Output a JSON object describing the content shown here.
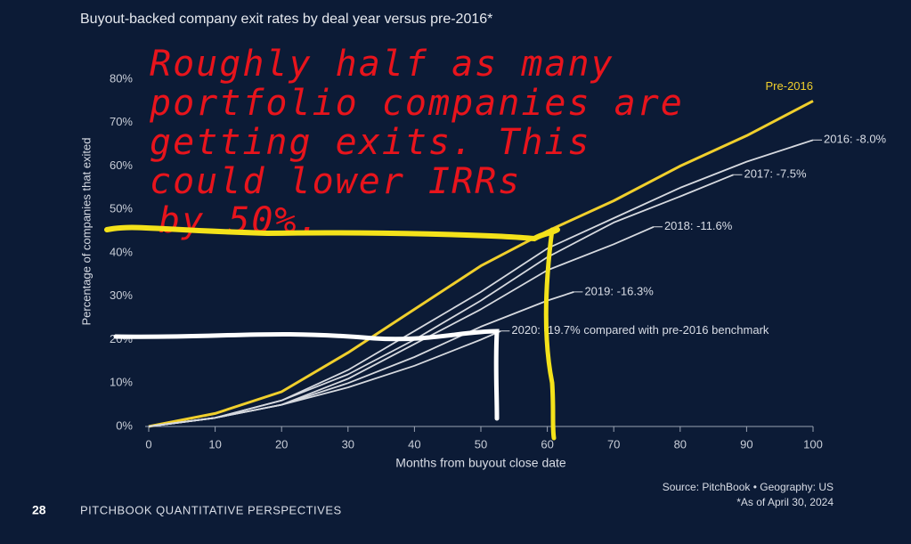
{
  "chart_data": {
    "type": "line",
    "title": "Buyout-backed company exit rates by deal year versus pre-2016*",
    "x_label": "Months from buyout close date",
    "y_label": "Percentage of companies that exited",
    "source": "Source: PitchBook • Geography: US",
    "footnote": "*As of April 30, 2024",
    "xlim": [
      0,
      100
    ],
    "xticks": [
      0,
      10,
      20,
      30,
      40,
      50,
      60,
      70,
      80,
      90,
      100
    ],
    "ylim": [
      0,
      80
    ],
    "yticks": [
      {
        "value": 0,
        "label": "0%"
      },
      {
        "value": 10,
        "label": "10%"
      },
      {
        "value": 20,
        "label": "20%"
      },
      {
        "value": 30,
        "label": "30%"
      },
      {
        "value": 40,
        "label": "40%"
      },
      {
        "value": 50,
        "label": "50%"
      },
      {
        "value": 60,
        "label": "60%"
      },
      {
        "value": 70,
        "label": "70%"
      },
      {
        "value": 80,
        "label": "80%"
      }
    ],
    "series": [
      {
        "name": "Pre-2016",
        "color": "#f0cf2c",
        "x": [
          0,
          10,
          20,
          30,
          40,
          50,
          60,
          70,
          80,
          90,
          100
        ],
        "values": [
          0,
          3,
          8,
          17,
          27,
          37,
          45,
          52,
          60,
          67,
          75
        ]
      },
      {
        "name": "2016: -8.0%",
        "color": "#d6d9df",
        "x": [
          0,
          10,
          20,
          30,
          40,
          50,
          60,
          70,
          80,
          90,
          100
        ],
        "values": [
          0,
          2,
          6,
          13,
          22,
          31,
          41,
          48,
          55,
          61,
          66
        ]
      },
      {
        "name": "2017: -7.5%",
        "color": "#d6d9df",
        "x": [
          0,
          10,
          20,
          30,
          40,
          50,
          60,
          70,
          80,
          88
        ],
        "values": [
          0,
          2,
          6,
          12,
          20,
          29,
          39,
          47,
          53,
          58
        ]
      },
      {
        "name": "2018: -11.6%",
        "color": "#d6d9df",
        "x": [
          0,
          10,
          20,
          30,
          40,
          50,
          60,
          70,
          76
        ],
        "values": [
          0,
          2,
          5,
          11,
          19,
          27,
          36,
          42,
          46
        ]
      },
      {
        "name": "2019: -16.3%",
        "color": "#d6d9df",
        "x": [
          0,
          10,
          20,
          30,
          40,
          50,
          60,
          64
        ],
        "values": [
          0,
          2,
          5,
          10,
          16,
          23,
          29,
          31
        ]
      },
      {
        "name": "2020: -19.7% compared with pre-2016 benchmark",
        "color": "#d6d9df",
        "x": [
          0,
          10,
          20,
          30,
          40,
          50,
          53
        ],
        "values": [
          0,
          2,
          5,
          9,
          14,
          20,
          22
        ]
      }
    ],
    "annotation": [
      "Roughly half as many",
      "portfolio companies are",
      "getting exits. This",
      "could lower IRRs",
      "by 50%."
    ]
  },
  "page_number": "28",
  "publication": "PITCHBOOK QUANTITATIVE PERSPECTIVES"
}
